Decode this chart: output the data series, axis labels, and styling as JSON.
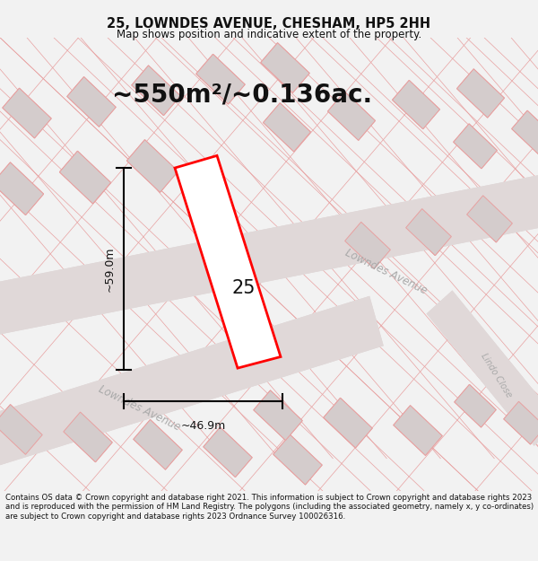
{
  "title": "25, LOWNDES AVENUE, CHESHAM, HP5 2HH",
  "subtitle": "Map shows position and indicative extent of the property.",
  "area_text": "~550m²/~0.136ac.",
  "label_25": "25",
  "dim_width": "~46.9m",
  "dim_height": "~59.0m",
  "lowndes_avenue_label1": "Lowndes Avenue",
  "lowndes_avenue_label2": "Lowndes Avenue",
  "lindo_close_label": "Lindo Close",
  "footer_text": "Contains OS data © Crown copyright and database right 2021. This information is subject to Crown copyright and database rights 2023 and is reproduced with the permission of HM Land Registry. The polygons (including the associated geometry, namely x, y co-ordinates) are subject to Crown copyright and database rights 2023 Ordnance Survey 100026316.",
  "bg_color": "#f2f2f2",
  "map_bg": "#eeecec",
  "road_color": "#e0d8d8",
  "building_fill": "#d4cccc",
  "building_edge": "#e8a0a0",
  "plot_line_color": "#ff0000",
  "plot_fill": "#ffffff",
  "dim_line_color": "#000000",
  "road_label_color": "#aaaaaa",
  "street_line_color": "#e8a0a0"
}
